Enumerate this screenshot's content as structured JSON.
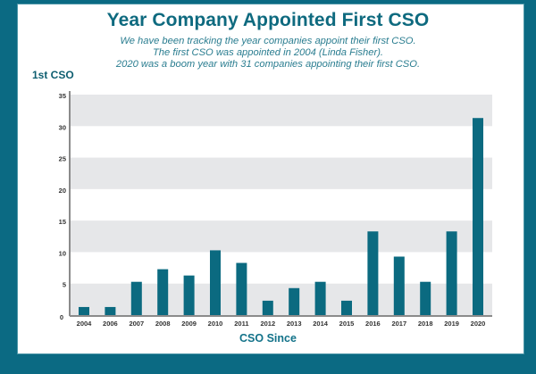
{
  "chart_data": {
    "type": "bar",
    "title": "Year Company Appointed First CSO",
    "subtitle": [
      "We have been tracking the year companies appoint their first CSO.",
      "The first CSO was appointed in 2004 (Linda Fisher).",
      "2020 was a boom year with 31 companies appointing their first CSO."
    ],
    "xlabel": "CSO Since",
    "ylabel": "1st CSO",
    "categories": [
      "2004",
      "2006",
      "2007",
      "2008",
      "2009",
      "2010",
      "2011",
      "2012",
      "2013",
      "2014",
      "2015",
      "2016",
      "2017",
      "2018",
      "2019",
      "2020"
    ],
    "values": [
      1,
      1,
      5,
      7,
      6,
      10,
      8,
      2,
      4,
      5,
      2,
      13,
      9,
      5,
      13,
      31
    ],
    "ylim": [
      0,
      35
    ],
    "yticks": [
      0,
      5,
      10,
      15,
      20,
      25,
      30,
      35
    ],
    "grid": "alternating horizontal bands",
    "legend": "none",
    "colors": {
      "bar": "#0b6a80",
      "band": "#e6e7e9",
      "title": "#0e6a7f",
      "frame": "#0b6a83"
    }
  }
}
